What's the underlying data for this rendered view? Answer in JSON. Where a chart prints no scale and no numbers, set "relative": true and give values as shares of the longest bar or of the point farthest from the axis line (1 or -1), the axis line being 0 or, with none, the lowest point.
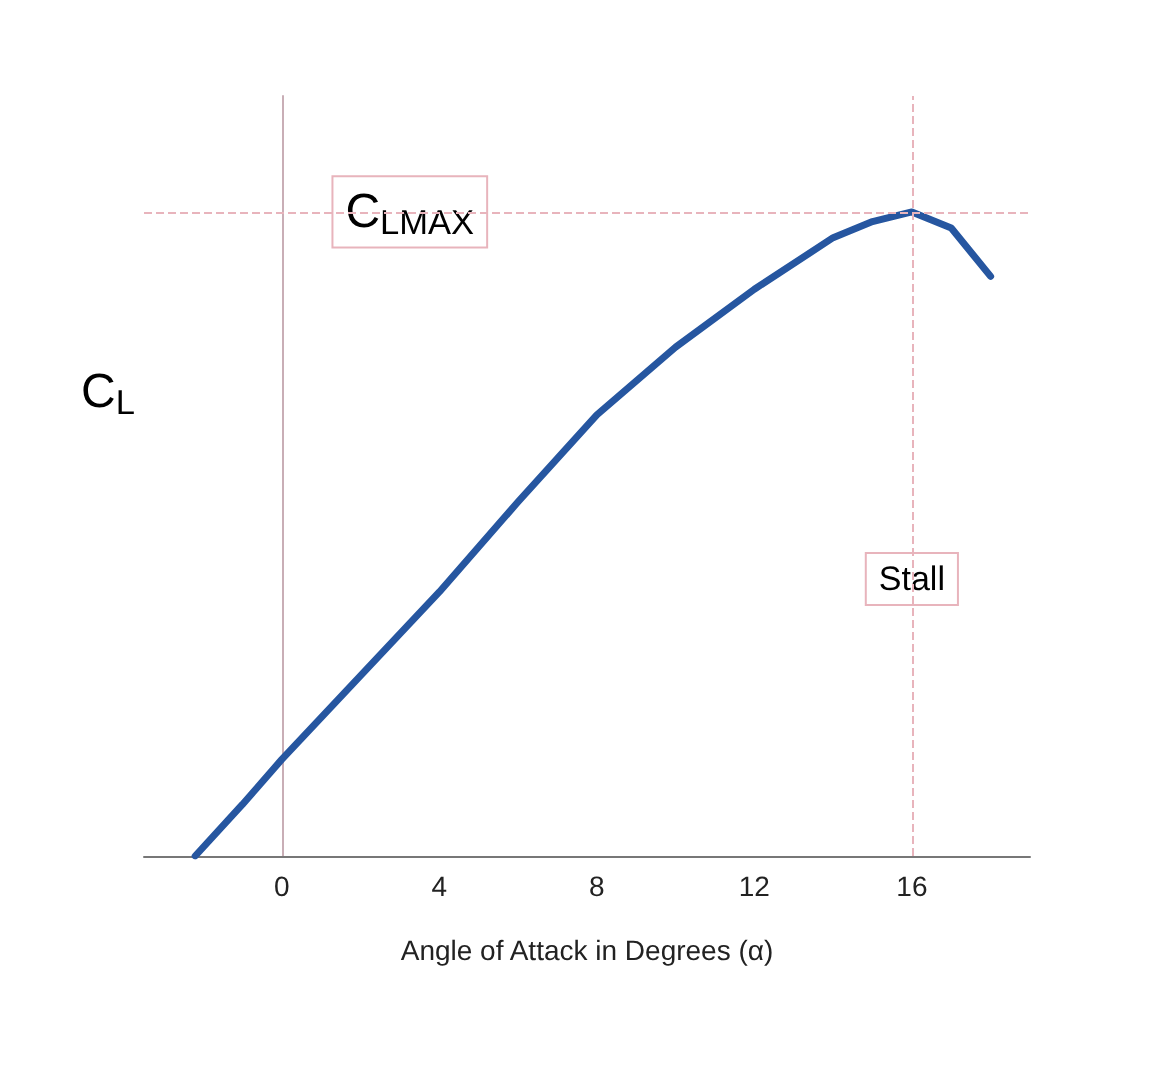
{
  "chart_data": {
    "type": "line",
    "relative": true,
    "xlabel": "Angle of Attack in Degrees (α)",
    "ylabel": "C$_{L}$",
    "x": [
      -2.2,
      -1,
      0,
      2,
      4,
      6,
      8,
      10,
      12,
      14,
      15,
      16,
      17,
      18
    ],
    "series": [
      {
        "color": "#2656a0",
        "values": [
          0,
          0.08,
          0.15,
          0.28,
          0.41,
          0.55,
          0.685,
          0.79,
          0.88,
          0.96,
          0.985,
          1,
          0.975,
          0.9
        ]
      }
    ],
    "xlim": [
      -3.5,
      19
    ],
    "xticks": [
      0,
      4,
      8,
      12,
      16
    ],
    "ref_lines": [
      {
        "axis": "y",
        "value": 1,
        "label": "C$_{LMAX}$",
        "color": "#e8b4bc",
        "line_style": "dashed"
      },
      {
        "axis": "x",
        "value": 16,
        "label": "Stall",
        "color": "#e8b4bc",
        "line_style": "dashed"
      }
    ],
    "grid": false,
    "marker": "none",
    "line_style": "solid"
  }
}
